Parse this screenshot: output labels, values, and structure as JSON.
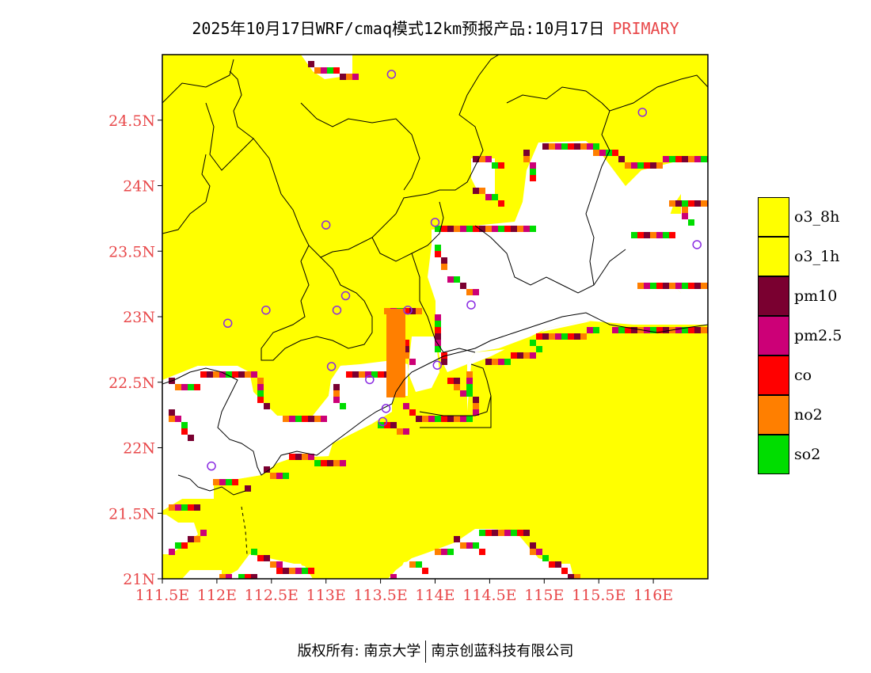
{
  "title": {
    "text": "2025年10月17日WRF/cmaq模式12km预报产品:10月17日",
    "status": "PRIMARY"
  },
  "axes": {
    "lat_ticks": [
      "21N",
      "21.5N",
      "22N",
      "22.5N",
      "23N",
      "23.5N",
      "24N",
      "24.5N"
    ],
    "lon_ticks": [
      "111.5E",
      "112E",
      "112.5E",
      "113E",
      "113.5E",
      "114E",
      "114.5E",
      "115E",
      "115.5E",
      "116E"
    ],
    "lat_range": [
      21,
      25
    ],
    "lon_range": [
      111.5,
      116.5
    ]
  },
  "legend": {
    "items": [
      {
        "label": "o3_8h",
        "color": "#ffff00"
      },
      {
        "label": "o3_1h",
        "color": "#ffff00"
      },
      {
        "label": "pm10",
        "color": "#7a0030"
      },
      {
        "label": "pm2.5",
        "color": "#cc0077"
      },
      {
        "label": "co",
        "color": "#ff0000"
      },
      {
        "label": "no2",
        "color": "#ff7f00"
      },
      {
        "label": "so2",
        "color": "#00dd00"
      }
    ]
  },
  "map": {
    "background_color": "#ffffff",
    "primary_color": "#ffff00",
    "station_marker_color": "#8a2be2",
    "stations": [
      {
        "lon": 113.6,
        "lat": 24.85
      },
      {
        "lon": 115.9,
        "lat": 24.56
      },
      {
        "lon": 113.0,
        "lat": 23.7
      },
      {
        "lon": 114.0,
        "lat": 23.72
      },
      {
        "lon": 116.4,
        "lat": 23.55
      },
      {
        "lon": 112.45,
        "lat": 23.05
      },
      {
        "lon": 112.1,
        "lat": 22.95
      },
      {
        "lon": 113.1,
        "lat": 23.05
      },
      {
        "lon": 113.18,
        "lat": 23.16
      },
      {
        "lon": 113.75,
        "lat": 23.05
      },
      {
        "lon": 114.33,
        "lat": 23.09
      },
      {
        "lon": 113.05,
        "lat": 22.62
      },
      {
        "lon": 113.4,
        "lat": 22.52
      },
      {
        "lon": 114.02,
        "lat": 22.63
      },
      {
        "lon": 113.55,
        "lat": 22.3
      },
      {
        "lon": 113.52,
        "lat": 22.2
      },
      {
        "lon": 111.95,
        "lat": 21.86
      }
    ]
  },
  "footer": {
    "left": "版权所有: 南京大学",
    "right": "南京创蓝科技有限公司"
  }
}
